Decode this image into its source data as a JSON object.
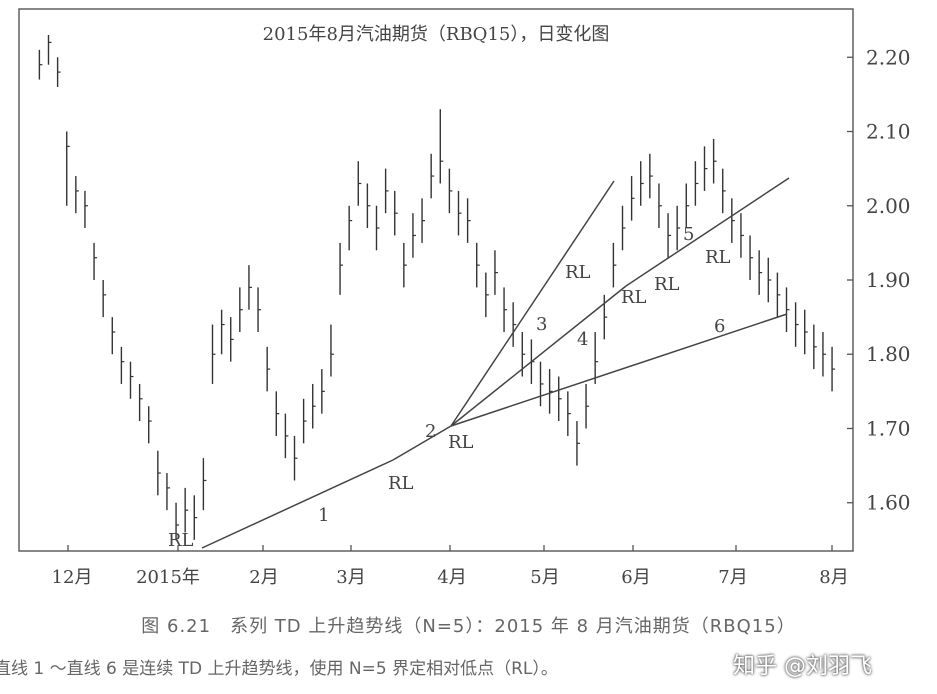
{
  "chart_data": {
    "type": "line",
    "title": "2015年8月汽油期货（RBQ15），日变化图",
    "x_tick_labels": [
      "12月",
      "2015年",
      "2月",
      "3月",
      "4月",
      "5月",
      "6月",
      "7月",
      "8月"
    ],
    "y_ticks": [
      "2.20",
      "2.10",
      "2.00",
      "1.90",
      "1.80",
      "1.70",
      "1.60"
    ],
    "y_tick_values": [
      2.2,
      2.1,
      2.0,
      1.9,
      1.8,
      1.7,
      1.6
    ],
    "ylim": [
      1.535,
      2.265
    ],
    "grid": false,
    "series": [
      {
        "type": "ohlc",
        "x": [
          0,
          0.4,
          0.8,
          1.2,
          1.6,
          2,
          2.4,
          2.8,
          3.2,
          3.6,
          4,
          4.4,
          4.8,
          5.2,
          5.6,
          6,
          6.4,
          6.8,
          7.2,
          7.6,
          8,
          8.4,
          8.8,
          9.2,
          9.6,
          10,
          10.4,
          10.8,
          11.2,
          11.6,
          12,
          12.4,
          12.8,
          13.2,
          13.6,
          14,
          14.4,
          14.8,
          15.2,
          15.6,
          16,
          16.4,
          16.8,
          17.2,
          17.6,
          18,
          18.4,
          18.8,
          19.2,
          19.6,
          20,
          20.4,
          20.8,
          21.2,
          21.6,
          22,
          22.4,
          22.8,
          23.2,
          23.6,
          24,
          24.4,
          24.8,
          25.2,
          25.6,
          26,
          26.4,
          26.8,
          27.2,
          27.6,
          28,
          28.4,
          28.8,
          29.2,
          29.6,
          30,
          30.4,
          30.8,
          31.2,
          31.6,
          32,
          32.4,
          32.8,
          33.2,
          33.6,
          34,
          34.4,
          34.8
        ],
        "close": [
          2.19,
          2.22,
          2.18,
          2.08,
          2.02,
          2.0,
          1.93,
          1.88,
          1.83,
          1.79,
          1.77,
          1.74,
          1.71,
          1.64,
          1.62,
          1.57,
          1.59,
          1.58,
          1.63,
          1.8,
          1.84,
          1.82,
          1.86,
          1.89,
          1.86,
          1.78,
          1.72,
          1.69,
          1.66,
          1.71,
          1.73,
          1.75,
          1.8,
          1.92,
          1.98,
          2.03,
          2.0,
          1.97,
          2.02,
          1.99,
          1.92,
          1.96,
          1.98,
          2.04,
          2.06,
          2.02,
          1.99,
          1.98,
          1.92,
          1.88,
          1.91,
          1.86,
          1.84,
          1.8,
          1.79,
          1.76,
          1.75,
          1.74,
          1.72,
          1.68,
          1.73,
          1.79,
          1.85,
          1.92,
          1.97,
          2.01,
          2.03,
          2.04,
          2.0,
          1.96,
          1.97,
          2.0,
          2.03,
          2.05,
          2.06,
          2.02,
          1.98,
          1.96,
          1.93,
          1.91,
          1.9,
          1.88,
          1.86,
          1.84,
          1.83,
          1.81,
          1.8,
          1.78
        ],
        "high": [
          2.21,
          2.23,
          2.2,
          2.1,
          2.04,
          2.02,
          1.95,
          1.9,
          1.85,
          1.81,
          1.79,
          1.76,
          1.73,
          1.67,
          1.64,
          1.6,
          1.62,
          1.61,
          1.66,
          1.84,
          1.86,
          1.85,
          1.89,
          1.92,
          1.89,
          1.81,
          1.75,
          1.72,
          1.69,
          1.74,
          1.76,
          1.78,
          1.84,
          1.95,
          2.0,
          2.06,
          2.03,
          2.0,
          2.05,
          2.02,
          1.95,
          1.99,
          2.01,
          2.07,
          2.13,
          2.05,
          2.02,
          2.01,
          1.95,
          1.91,
          1.94,
          1.89,
          1.87,
          1.83,
          1.82,
          1.79,
          1.78,
          1.77,
          1.75,
          1.71,
          1.76,
          1.83,
          1.88,
          1.95,
          2.0,
          2.04,
          2.06,
          2.07,
          2.03,
          1.99,
          2.0,
          2.03,
          2.06,
          2.08,
          2.09,
          2.05,
          2.01,
          1.99,
          1.96,
          1.94,
          1.93,
          1.91,
          1.89,
          1.87,
          1.86,
          1.84,
          1.83,
          1.81
        ],
        "low": [
          2.17,
          2.19,
          2.16,
          2.0,
          1.99,
          1.97,
          1.9,
          1.85,
          1.8,
          1.76,
          1.74,
          1.71,
          1.68,
          1.61,
          1.59,
          1.55,
          1.56,
          1.55,
          1.59,
          1.76,
          1.8,
          1.79,
          1.83,
          1.86,
          1.83,
          1.75,
          1.69,
          1.66,
          1.63,
          1.68,
          1.7,
          1.72,
          1.77,
          1.88,
          1.94,
          2.0,
          1.97,
          1.94,
          1.99,
          1.96,
          1.89,
          1.93,
          1.95,
          2.01,
          2.03,
          1.99,
          1.96,
          1.95,
          1.89,
          1.85,
          1.88,
          1.83,
          1.81,
          1.77,
          1.76,
          1.73,
          1.72,
          1.71,
          1.69,
          1.65,
          1.7,
          1.76,
          1.82,
          1.89,
          1.94,
          1.98,
          2.0,
          2.01,
          1.97,
          1.93,
          1.94,
          1.97,
          2.0,
          2.02,
          2.03,
          1.99,
          1.95,
          1.93,
          1.9,
          1.88,
          1.87,
          1.85,
          1.83,
          1.81,
          1.8,
          1.78,
          1.77,
          1.75
        ]
      }
    ],
    "trendlines": [
      {
        "label": "1",
        "from": "Jan RL",
        "to": "Mar RL"
      },
      {
        "label": "2",
        "from": "Mar RL",
        "to": "Apr RL"
      },
      {
        "label": "3",
        "from": "Apr RL",
        "to": "May high"
      },
      {
        "label": "4",
        "from": "Apr RL",
        "to": "Jun RL"
      },
      {
        "label": "5",
        "from": "Jun RL",
        "to": "Jul high"
      },
      {
        "label": "6",
        "from": "Apr RL",
        "to": "Jul RL"
      }
    ],
    "annotations": [
      "RL",
      "RL",
      "RL",
      "RL",
      "RL",
      "RL",
      "RL"
    ]
  },
  "caption": {
    "line1": "图 6.21　系列 TD 上升趋势线（N=5）：2015 年 8 月汽油期货（RBQ15）",
    "line2": "直线 1 ～直线 6 是连续 TD 上升趋势线，使用 N=5 界定相对低点（RL）。"
  },
  "watermark": "知乎 @刘羽飞"
}
